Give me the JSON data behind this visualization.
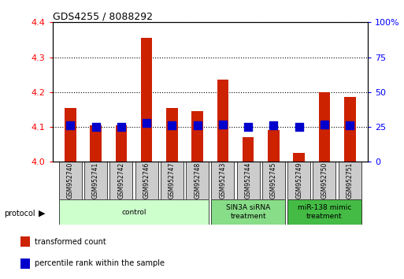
{
  "title": "GDS4255 / 8088292",
  "samples": [
    "GSM952740",
    "GSM952741",
    "GSM952742",
    "GSM952746",
    "GSM952747",
    "GSM952748",
    "GSM952743",
    "GSM952744",
    "GSM952745",
    "GSM952749",
    "GSM952750",
    "GSM952751"
  ],
  "transformed_count": [
    4.155,
    4.105,
    4.105,
    4.355,
    4.155,
    4.145,
    4.235,
    4.07,
    4.09,
    4.025,
    4.2,
    4.185
  ],
  "percentile_rank": [
    26,
    25,
    25,
    28,
    26,
    26,
    27,
    25,
    26,
    25,
    27,
    26
  ],
  "ylim_left": [
    4.0,
    4.4
  ],
  "ylim_right": [
    0,
    100
  ],
  "yticks_left": [
    4.0,
    4.1,
    4.2,
    4.3,
    4.4
  ],
  "yticks_right": [
    0,
    25,
    50,
    75,
    100
  ],
  "ytick_labels_right": [
    "0",
    "25",
    "50",
    "75",
    "100%"
  ],
  "bar_color": "#cc2200",
  "dot_color": "#0000cc",
  "groups": [
    {
      "label": "control",
      "start": 0,
      "end": 6,
      "color": "#ccffcc",
      "text_color": "#000000"
    },
    {
      "label": "SIN3A siRNA\ntreatment",
      "start": 6,
      "end": 9,
      "color": "#88dd88",
      "text_color": "#000000"
    },
    {
      "label": "miR-138 mimic\ntreatment",
      "start": 9,
      "end": 12,
      "color": "#44bb44",
      "text_color": "#000000"
    }
  ],
  "protocol_label": "protocol",
  "legend_items": [
    {
      "color": "#cc2200",
      "label": "transformed count"
    },
    {
      "color": "#0000cc",
      "label": "percentile rank within the sample"
    }
  ],
  "bar_width": 0.45,
  "dot_size": 50,
  "sample_box_color": "#cccccc",
  "fig_width": 5.13,
  "fig_height": 3.54,
  "dpi": 100
}
